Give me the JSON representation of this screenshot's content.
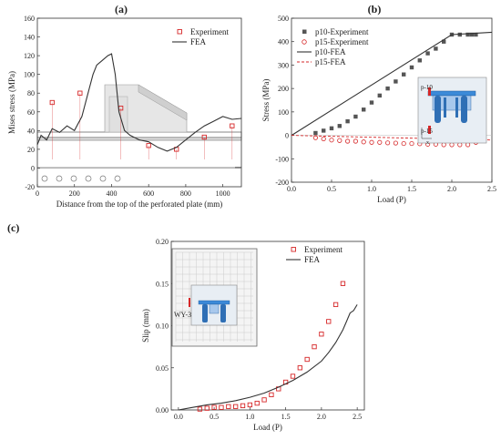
{
  "panels": {
    "a": {
      "label": "(a)"
    },
    "b": {
      "label": "(b)"
    },
    "c": {
      "label": "(c)"
    }
  },
  "colors": {
    "experiment": "#d62728",
    "fea": "#333333",
    "exp_dark": "#555555",
    "inset_blue": "#3c8ad8",
    "grey_fill": "#d0d0d0"
  },
  "chart_data": [
    {
      "id": "a",
      "type": "line",
      "xlabel": "Distance from the top of the perforated plate (mm)",
      "ylabel": "Mises stress (MPa)",
      "xlim": [
        0,
        1100
      ],
      "ylim": [
        -20,
        160
      ],
      "xticks": [
        0,
        200,
        400,
        600,
        800,
        1000
      ],
      "yticks": [
        -20,
        0,
        20,
        40,
        60,
        80,
        100,
        120,
        140,
        160
      ],
      "legend": "top-right",
      "series": [
        {
          "name": "Experiment",
          "marker": "open-square",
          "color": "#d62728",
          "x": [
            80,
            230,
            450,
            600,
            750,
            900,
            1050
          ],
          "y": [
            70,
            80,
            64,
            24,
            20,
            33,
            45
          ]
        },
        {
          "name": "FEA",
          "marker": "line",
          "color": "#333333",
          "x": [
            0,
            20,
            50,
            80,
            120,
            160,
            200,
            240,
            280,
            300,
            320,
            350,
            380,
            400,
            420,
            440,
            470,
            500,
            550,
            600,
            650,
            700,
            750,
            800,
            850,
            900,
            950,
            1000,
            1050,
            1100
          ],
          "y": [
            25,
            35,
            30,
            42,
            38,
            45,
            40,
            55,
            85,
            100,
            110,
            115,
            120,
            122,
            100,
            60,
            40,
            35,
            30,
            28,
            22,
            18,
            22,
            30,
            38,
            45,
            50,
            55,
            52,
            53
          ]
        }
      ]
    },
    {
      "id": "b",
      "type": "scatter",
      "xlabel": "Load (P)",
      "ylabel": "Stress (MPa)",
      "xlim": [
        0,
        2.5
      ],
      "ylim": [
        -200,
        500
      ],
      "xticks": [
        0.0,
        0.5,
        1.0,
        1.5,
        2.0,
        2.5
      ],
      "yticks": [
        -200,
        -100,
        0,
        100,
        200,
        300,
        400,
        500
      ],
      "legend": "top-left",
      "inset_labels": [
        "p-10",
        "p-15",
        "x"
      ],
      "series": [
        {
          "name": "p10-Experiment",
          "marker": "filled-square",
          "color": "#555555",
          "x": [
            0.3,
            0.4,
            0.5,
            0.6,
            0.7,
            0.8,
            0.9,
            1.0,
            1.1,
            1.2,
            1.3,
            1.4,
            1.5,
            1.6,
            1.7,
            1.8,
            1.9,
            2.0,
            2.1,
            2.2,
            2.25,
            2.3
          ],
          "y": [
            10,
            20,
            30,
            40,
            60,
            80,
            110,
            140,
            170,
            200,
            230,
            260,
            290,
            320,
            350,
            370,
            400,
            430,
            430,
            430,
            430,
            430
          ]
        },
        {
          "name": "p15-Experiment",
          "marker": "open-circle",
          "color": "#d62728",
          "x": [
            0.3,
            0.4,
            0.5,
            0.6,
            0.7,
            0.8,
            0.9,
            1.0,
            1.1,
            1.2,
            1.3,
            1.4,
            1.5,
            1.6,
            1.7,
            1.8,
            1.9,
            2.0,
            2.1,
            2.2,
            2.3
          ],
          "y": [
            -10,
            -15,
            -20,
            -22,
            -25,
            -25,
            -28,
            -30,
            -30,
            -32,
            -33,
            -35,
            -35,
            -36,
            -38,
            -38,
            -40,
            -40,
            -40,
            -40,
            -30
          ]
        },
        {
          "name": "p10-FEA",
          "marker": "line",
          "color": "#333333",
          "x": [
            0.0,
            2.0,
            2.5
          ],
          "y": [
            0,
            430,
            440
          ]
        },
        {
          "name": "p15-FEA",
          "marker": "dashed",
          "color": "#d62728",
          "x": [
            0.0,
            2.5
          ],
          "y": [
            0,
            -20
          ]
        }
      ]
    },
    {
      "id": "c",
      "type": "scatter",
      "xlabel": "Load (P)",
      "ylabel": "Slip (mm)",
      "xlim": [
        -0.1,
        2.6
      ],
      "ylim": [
        0.0,
        0.2
      ],
      "xticks": [
        0.0,
        0.5,
        1.0,
        1.5,
        2.0,
        2.5
      ],
      "yticks": [
        0.0,
        0.05,
        0.1,
        0.15,
        0.2
      ],
      "ytick_labels": [
        "0.00",
        "0.05",
        "0.10",
        "0.15",
        "0.20"
      ],
      "legend": "top-right",
      "inset_labels": [
        "WY-3"
      ],
      "series": [
        {
          "name": "Experiment",
          "marker": "open-square",
          "color": "#d62728",
          "x": [
            0.3,
            0.4,
            0.5,
            0.6,
            0.7,
            0.8,
            0.9,
            1.0,
            1.1,
            1.2,
            1.3,
            1.4,
            1.5,
            1.6,
            1.7,
            1.8,
            1.9,
            2.0,
            2.1,
            2.2,
            2.3
          ],
          "y": [
            0.001,
            0.002,
            0.003,
            0.003,
            0.004,
            0.004,
            0.005,
            0.006,
            0.008,
            0.012,
            0.018,
            0.025,
            0.033,
            0.04,
            0.05,
            0.06,
            0.075,
            0.09,
            0.105,
            0.125,
            0.15
          ]
        },
        {
          "name": "FEA",
          "marker": "line",
          "color": "#333333",
          "x": [
            0.0,
            0.2,
            0.4,
            0.6,
            0.8,
            1.0,
            1.2,
            1.4,
            1.6,
            1.8,
            2.0,
            2.1,
            2.2,
            2.3,
            2.35,
            2.4,
            2.45,
            2.5
          ],
          "y": [
            0.0,
            0.003,
            0.006,
            0.008,
            0.011,
            0.015,
            0.02,
            0.027,
            0.035,
            0.045,
            0.058,
            0.068,
            0.08,
            0.095,
            0.105,
            0.115,
            0.118,
            0.125
          ]
        }
      ]
    }
  ]
}
